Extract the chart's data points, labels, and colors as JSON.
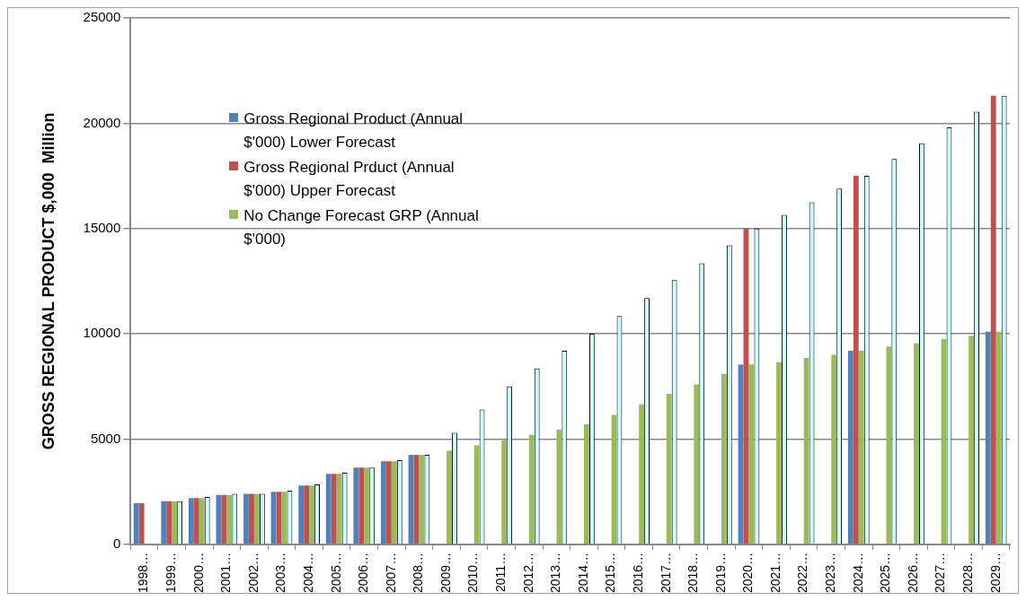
{
  "chart_data": {
    "type": "bar",
    "ylabel": "GROSS REGIONAL PRODUCT $,000  Million",
    "categories": [
      "1998…",
      "1999…",
      "2000…",
      "2001…",
      "2002…",
      "2003…",
      "2004…",
      "2005…",
      "2006…",
      "2007…",
      "2008…",
      "2009…",
      "2010…",
      "2011…",
      "2012…",
      "2013…",
      "2014…",
      "2015…",
      "2016…",
      "2017…",
      "2018…",
      "2019…",
      "2020…",
      "2021…",
      "2022…",
      "2023…",
      "2024…",
      "2025…",
      "2026…",
      "2027…",
      "2028…",
      "2029…"
    ],
    "series": [
      {
        "name": "Gross Regional Product (Annual $'000) Lower Forecast",
        "color": "#4f81bd",
        "values": [
          1950,
          2050,
          2200,
          2350,
          2400,
          2500,
          2800,
          3350,
          3650,
          3950,
          4250,
          null,
          null,
          null,
          null,
          null,
          null,
          null,
          null,
          null,
          null,
          null,
          8530,
          null,
          null,
          null,
          9200,
          null,
          null,
          null,
          null,
          10100
        ]
      },
      {
        "name": "Gross Regional Prduct (Annual $'000) Upper Forecast",
        "color": "#c0504d",
        "values": [
          1950,
          2050,
          2200,
          2350,
          2400,
          2500,
          2800,
          3350,
          3650,
          3950,
          4250,
          null,
          null,
          null,
          null,
          null,
          null,
          null,
          null,
          null,
          null,
          null,
          15000,
          null,
          null,
          null,
          17500,
          null,
          null,
          null,
          null,
          21300
        ]
      },
      {
        "name": "No Change Forecast GRP (Annual $'000)",
        "color": "#9bbb59",
        "values": [
          null,
          2050,
          2200,
          2350,
          2400,
          2500,
          2800,
          3350,
          3650,
          3950,
          4250,
          4450,
          4700,
          4950,
          5200,
          5450,
          5700,
          6150,
          6650,
          7150,
          7600,
          8100,
          8550,
          8650,
          8850,
          9000,
          9200,
          9400,
          9550,
          9750,
          9900,
          10100
        ]
      },
      {
        "color": "#ccffff",
        "values": [
          null,
          2050,
          2250,
          2400,
          2400,
          2550,
          2850,
          3400,
          3650,
          4000,
          4250,
          5300,
          6400,
          7500,
          8350,
          9200,
          10000,
          10850,
          11700,
          12550,
          13350,
          14200,
          15000,
          15650,
          16250,
          16900,
          17500,
          18300,
          19050,
          19800,
          20550,
          21300
        ]
      }
    ],
    "ylim": [
      0,
      25000
    ],
    "yticks": [
      0,
      5000,
      10000,
      15000,
      20000,
      25000
    ],
    "grid": "y",
    "legend": "top left"
  }
}
